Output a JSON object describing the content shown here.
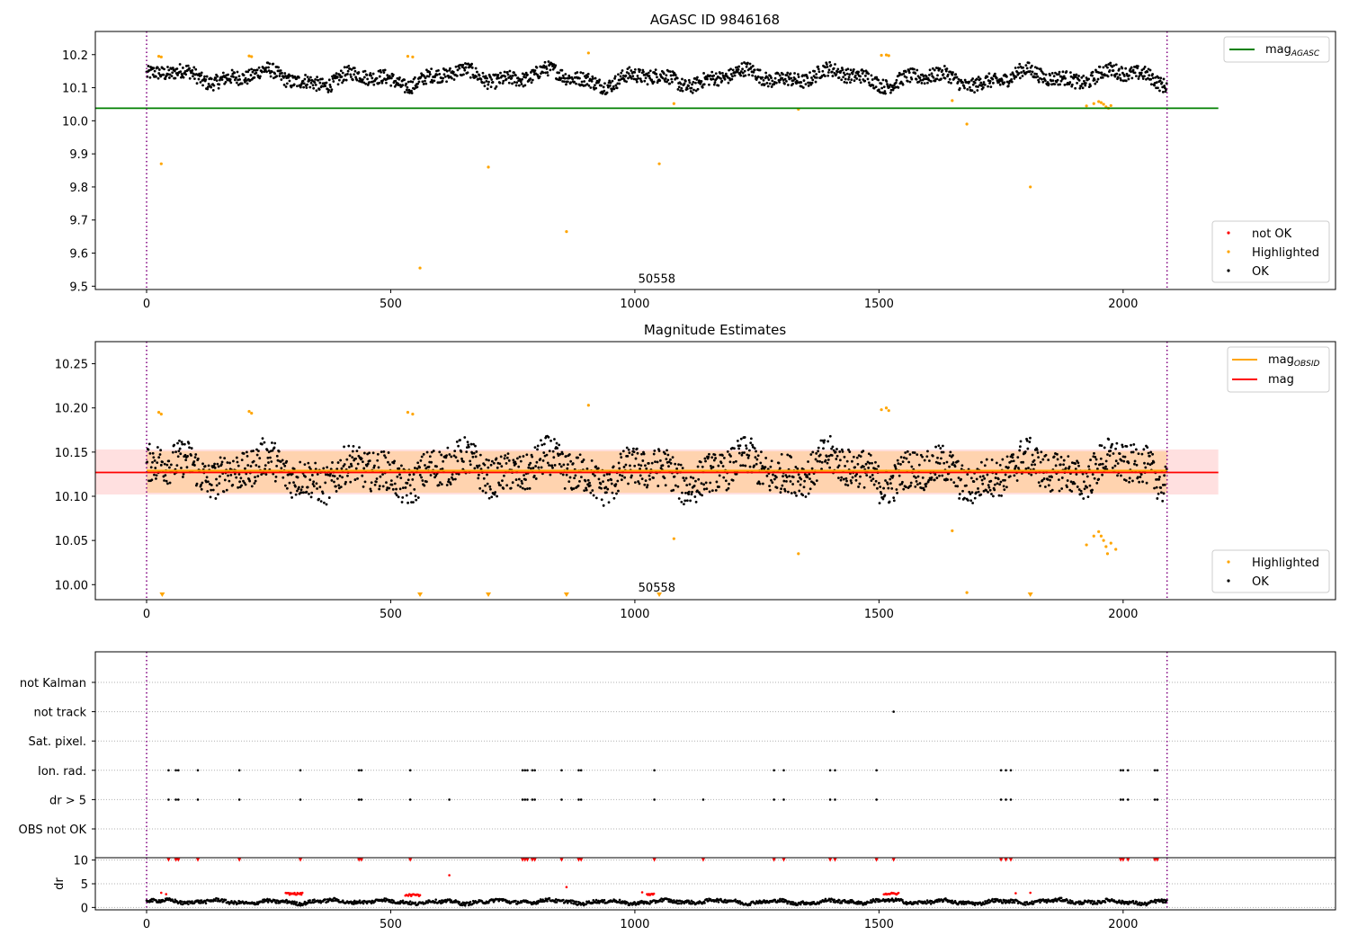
{
  "chart_data": [
    {
      "type": "scatter",
      "title": "AGASC ID 9846168",
      "xlim": [
        -105,
        2435
      ],
      "ylim": [
        9.49,
        10.27
      ],
      "xticks": [
        0,
        500,
        1000,
        1500,
        2000
      ],
      "yticks": [
        9.5,
        9.6,
        9.7,
        9.8,
        9.9,
        10.0,
        10.1,
        10.2
      ],
      "yticklabels": [
        "9.5",
        "9.6",
        "9.7",
        "9.8",
        "9.9",
        "10.0",
        "10.1",
        "10.2"
      ],
      "vlines": [
        0,
        2090
      ],
      "annotation": {
        "text": "50558",
        "x": 1045,
        "y": 9.51
      },
      "mag_agasc": 10.038,
      "mag_agasc_xrange": [
        -105,
        2195
      ],
      "ok_band": {
        "center": 10.13,
        "amplitude": 0.03,
        "noise": 0.022
      },
      "highlighted": [
        [
          25,
          10.195
        ],
        [
          30,
          10.193
        ],
        [
          210,
          10.196
        ],
        [
          215,
          10.194
        ],
        [
          535,
          10.195
        ],
        [
          545,
          10.193
        ],
        [
          905,
          10.205
        ],
        [
          1505,
          10.198
        ],
        [
          1515,
          10.199
        ],
        [
          1520,
          10.197
        ],
        [
          1080,
          10.052
        ],
        [
          1335,
          10.035
        ],
        [
          1650,
          10.061
        ],
        [
          1925,
          10.045
        ],
        [
          1940,
          10.052
        ],
        [
          1950,
          10.058
        ],
        [
          1955,
          10.055
        ],
        [
          1960,
          10.05
        ],
        [
          1965,
          10.042
        ],
        [
          1970,
          10.038
        ],
        [
          1975,
          10.046
        ],
        [
          30,
          9.87
        ],
        [
          560,
          9.555
        ],
        [
          700,
          9.86
        ],
        [
          860,
          9.665
        ],
        [
          1050,
          9.87
        ],
        [
          1680,
          9.99
        ],
        [
          1810,
          9.8
        ]
      ],
      "series": [
        {
          "name": "not OK",
          "color": "#ff0000"
        },
        {
          "name": "Highlighted",
          "color": "#ffa500"
        },
        {
          "name": "OK",
          "color": "#000000"
        }
      ],
      "line_legend": [
        {
          "name": "mag",
          "subscript": "AGASC",
          "color": "#008000"
        }
      ]
    },
    {
      "type": "scatter",
      "title": "Magnitude Estimates",
      "xlim": [
        -105,
        2435
      ],
      "ylim": [
        9.983,
        10.275
      ],
      "xticks": [
        0,
        500,
        1000,
        1500,
        2000
      ],
      "yticks": [
        10.0,
        10.05,
        10.1,
        10.15,
        10.2,
        10.25
      ],
      "yticklabels": [
        "10.00",
        "10.05",
        "10.10",
        "10.15",
        "10.20",
        "10.25"
      ],
      "vlines": [
        0,
        2090
      ],
      "annotation": {
        "text": "50558",
        "x": 1045,
        "y": 9.992
      },
      "mag": 10.127,
      "mag_band": [
        10.102,
        10.153
      ],
      "mag_xrange": [
        -105,
        2195
      ],
      "mag_obsid": {
        "value": 10.129,
        "band": [
          10.104,
          10.151
        ],
        "xrange": [
          0,
          2090
        ]
      },
      "ok_band": {
        "center": 10.128,
        "amplitude": 0.02,
        "noise": 0.022
      },
      "highlighted": [
        [
          25,
          10.195
        ],
        [
          30,
          10.193
        ],
        [
          210,
          10.196
        ],
        [
          215,
          10.194
        ],
        [
          535,
          10.195
        ],
        [
          545,
          10.193
        ],
        [
          905,
          10.203
        ],
        [
          1505,
          10.198
        ],
        [
          1515,
          10.2
        ],
        [
          1520,
          10.197
        ],
        [
          1080,
          10.052
        ],
        [
          1335,
          10.035
        ],
        [
          1650,
          10.061
        ],
        [
          1680,
          9.991
        ],
        [
          1925,
          10.045
        ],
        [
          1940,
          10.055
        ],
        [
          1950,
          10.06
        ],
        [
          1955,
          10.055
        ],
        [
          1960,
          10.05
        ],
        [
          1965,
          10.043
        ],
        [
          1968,
          10.035
        ],
        [
          1975,
          10.047
        ],
        [
          1985,
          10.04
        ]
      ],
      "below_range": [
        32,
        560,
        700,
        860,
        1050,
        1810
      ],
      "series": [
        {
          "name": "Highlighted",
          "color": "#ffa500"
        },
        {
          "name": "OK",
          "color": "#000000"
        }
      ],
      "line_legend": [
        {
          "name": "mag",
          "subscript": "OBSID",
          "color": "#ffa500"
        },
        {
          "name": "mag",
          "subscript": "",
          "color": "#ff0000"
        }
      ]
    },
    {
      "type": "scatter",
      "xlim": [
        -105,
        2435
      ],
      "vlines": [
        0,
        2090
      ],
      "categories": [
        "not Kalman",
        "not track",
        "Sat. pixel.",
        "Ion. rad.",
        "dr > 5",
        "OBS not OK"
      ],
      "flags": {
        "not track": [
          1530
        ],
        "Ion. rad.": [
          45,
          60,
          65,
          105,
          190,
          315,
          435,
          440,
          540,
          770,
          775,
          780,
          790,
          795,
          850,
          885,
          890,
          1040,
          1285,
          1305,
          1400,
          1410,
          1495,
          1750,
          1760,
          1770,
          1995,
          2000,
          2010,
          2065,
          2070
        ],
        "dr > 5": [
          45,
          60,
          65,
          105,
          190,
          315,
          435,
          440,
          540,
          620,
          770,
          775,
          780,
          790,
          795,
          850,
          885,
          890,
          1040,
          1140,
          1285,
          1305,
          1400,
          1410,
          1495,
          1750,
          1760,
          1770,
          1995,
          2000,
          2010,
          2065,
          2070
        ]
      }
    },
    {
      "type": "scatter",
      "ylabel": "dr",
      "xlim": [
        -105,
        2435
      ],
      "ylim": [
        -0.5,
        10.5
      ],
      "xticks": [
        0,
        500,
        1000,
        1500,
        2000
      ],
      "yticks": [
        0,
        5,
        10
      ],
      "vlines": [
        0,
        2090
      ],
      "capped_at_10": [
        45,
        60,
        65,
        105,
        190,
        315,
        435,
        440,
        540,
        770,
        775,
        780,
        790,
        795,
        850,
        885,
        890,
        1040,
        1140,
        1285,
        1305,
        1400,
        1410,
        1495,
        1530,
        1750,
        1760,
        1770,
        1995,
        2000,
        2010,
        2065,
        2070
      ],
      "red_points": [
        [
          30,
          3.1
        ],
        [
          40,
          2.8
        ],
        [
          620,
          6.8
        ],
        [
          860,
          4.3
        ],
        [
          1015,
          3.2
        ],
        [
          1780,
          3.0
        ],
        [
          1810,
          3.1
        ]
      ],
      "red_runs": [
        [
          285,
          320,
          2.9
        ],
        [
          530,
          560,
          2.6
        ],
        [
          1025,
          1040,
          2.8
        ],
        [
          1510,
          1540,
          2.9
        ]
      ],
      "black_band": {
        "center": 1.2,
        "amplitude": 0.5,
        "noise": 0.35
      }
    }
  ]
}
